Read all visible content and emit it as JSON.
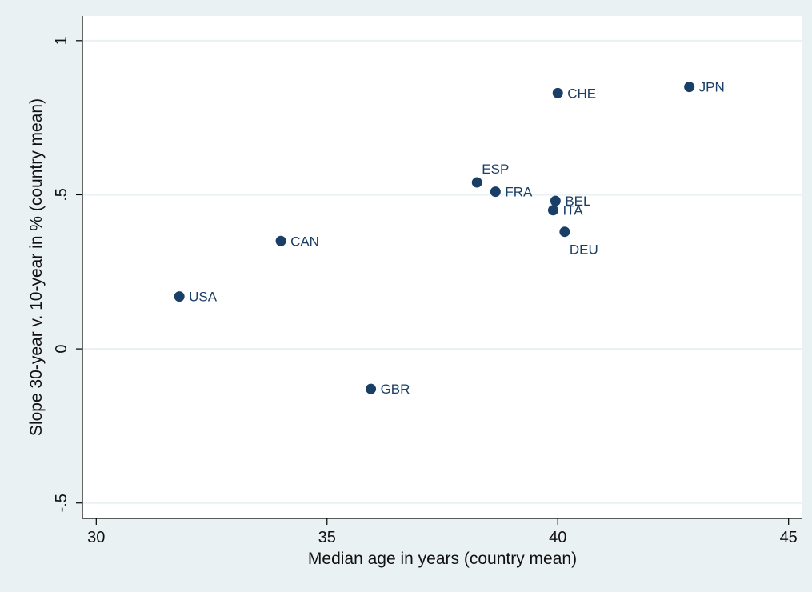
{
  "chart_data": {
    "type": "scatter",
    "title": "",
    "xlabel": "Median age in years (country mean)",
    "ylabel": "Slope 30-year v. 10-year in % (country mean)",
    "xlim": [
      29.7,
      45.3
    ],
    "ylim": [
      -0.55,
      1.08
    ],
    "x_ticks": [
      30,
      35,
      40,
      45
    ],
    "y_ticks": [
      -0.5,
      0,
      0.5,
      1
    ],
    "x_tick_labels": [
      "30",
      "35",
      "40",
      "45"
    ],
    "y_tick_labels": [
      "-.5",
      "0",
      ".5",
      "1"
    ],
    "grid": "horizontal",
    "legend": "none",
    "colors": {
      "outer_background": "#eaf1f3",
      "plot_background": "#ffffff",
      "gridline": "#eaf1f3",
      "marker": "#1a3f66",
      "label": "#1a3f66",
      "axis": "#000000"
    },
    "points": [
      {
        "label": "USA",
        "x": 31.8,
        "y": 0.17,
        "label_pos": "right"
      },
      {
        "label": "CAN",
        "x": 34.0,
        "y": 0.35,
        "label_pos": "right"
      },
      {
        "label": "GBR",
        "x": 35.95,
        "y": -0.13,
        "label_pos": "right"
      },
      {
        "label": "ESP",
        "x": 38.25,
        "y": 0.54,
        "label_pos": "above-right"
      },
      {
        "label": "FRA",
        "x": 38.65,
        "y": 0.51,
        "label_pos": "right"
      },
      {
        "label": "CHE",
        "x": 40.0,
        "y": 0.83,
        "label_pos": "right"
      },
      {
        "label": "BEL",
        "x": 39.95,
        "y": 0.48,
        "label_pos": "right"
      },
      {
        "label": "ITA",
        "x": 39.9,
        "y": 0.45,
        "label_pos": "right"
      },
      {
        "label": "DEU",
        "x": 40.15,
        "y": 0.38,
        "label_pos": "below"
      },
      {
        "label": "JPN",
        "x": 42.85,
        "y": 0.85,
        "label_pos": "right"
      }
    ]
  }
}
